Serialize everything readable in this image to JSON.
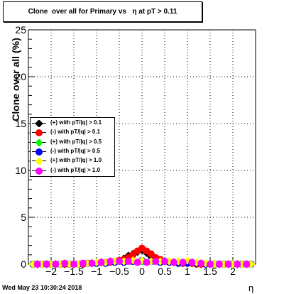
{
  "title_text": "Clone  over all for Primary vs   η at pT > 0.11",
  "footer": {
    "date": "Wed May 23 10:30:24 2018"
  },
  "chart_data": {
    "type": "scatter",
    "title": "Clone  over all for Primary vs   η at pT > 0.11",
    "xlabel": "η",
    "ylabel": "Clone  over all (%)",
    "xlim": [
      -2.5,
      2.5
    ],
    "ylim": [
      0,
      25
    ],
    "xticks": [
      "−2",
      "−1.5",
      "−1",
      "−0.5",
      "0",
      "0.5",
      "1",
      "1.5",
      "2"
    ],
    "xtick_values": [
      -2,
      -1.5,
      -1,
      -0.5,
      0,
      0.5,
      1,
      1.5,
      2
    ],
    "yticks": [
      "0",
      "5",
      "10",
      "15",
      "20",
      "25"
    ],
    "ytick_values": [
      0,
      5,
      10,
      15,
      20,
      25
    ],
    "grid": true,
    "legend_position": "left",
    "colors": {
      "black": "#000000",
      "red": "#ff0000",
      "green": "#00ff00",
      "blue": "#0000ff",
      "yellow": "#ffff00",
      "magenta": "#ff00ff"
    },
    "series": [
      {
        "name": "(+) with pT/|q| > 0.1",
        "color": "#000000",
        "x": [
          -2.4,
          -2.3,
          -2.2,
          -2.1,
          -2.0,
          -1.9,
          -1.8,
          -1.7,
          -1.6,
          -1.5,
          -1.4,
          -1.3,
          -1.2,
          -1.1,
          -1.0,
          -0.9,
          -0.8,
          -0.7,
          -0.6,
          -0.5,
          -0.4,
          -0.3,
          -0.2,
          -0.1,
          0.0,
          0.1,
          0.2,
          0.3,
          0.4,
          0.5,
          0.6,
          0.7,
          0.8,
          0.9,
          1.0,
          1.1,
          1.2,
          1.3,
          1.4,
          1.5,
          1.6,
          1.7,
          1.8,
          1.9,
          2.0,
          2.1,
          2.2,
          2.3,
          2.4
        ],
        "y": [
          0,
          0,
          0,
          0,
          0,
          0,
          0,
          0,
          0,
          0,
          0,
          0,
          0.1,
          0.1,
          0.1,
          0.2,
          0.2,
          0.3,
          0.3,
          0.4,
          0.6,
          0.9,
          1.1,
          1.3,
          1.5,
          1.2,
          0.8,
          0.5,
          0.4,
          0.3,
          0.2,
          0.2,
          0.1,
          0.1,
          0.1,
          0.1,
          0,
          0,
          0,
          0,
          0,
          0,
          0,
          0,
          0,
          0,
          0,
          0,
          0
        ]
      },
      {
        "name": "(-) with pT/|q| > 0.1",
        "color": "#ff0000",
        "x": [
          -2.4,
          -2.3,
          -2.2,
          -2.1,
          -2.0,
          -1.9,
          -1.8,
          -1.7,
          -1.6,
          -1.5,
          -1.4,
          -1.3,
          -1.2,
          -1.1,
          -1.0,
          -0.9,
          -0.8,
          -0.7,
          -0.6,
          -0.5,
          -0.4,
          -0.3,
          -0.2,
          -0.1,
          0.0,
          0.1,
          0.2,
          0.3,
          0.4,
          0.5,
          0.6,
          0.7,
          0.8,
          0.9,
          1.0,
          1.1,
          1.2,
          1.3,
          1.4,
          1.5,
          1.6,
          1.7,
          1.8,
          1.9,
          2.0,
          2.1,
          2.2,
          2.3,
          2.4
        ],
        "y": [
          0,
          0,
          0,
          0,
          0,
          0,
          0,
          0,
          0,
          0,
          0,
          0,
          0.1,
          0.1,
          0.1,
          0.2,
          0.2,
          0.2,
          0.3,
          0.4,
          0.5,
          0.7,
          1.0,
          1.4,
          1.7,
          1.4,
          1.1,
          0.7,
          0.5,
          0.3,
          0.2,
          0.2,
          0.1,
          0.1,
          0.1,
          0.1,
          0,
          0,
          0,
          0,
          0,
          0,
          0,
          0,
          0,
          0,
          0,
          0,
          0
        ]
      },
      {
        "name": "(+) with pT/|q| > 0.5",
        "color": "#00ff00",
        "x": [
          -2.4,
          -2.2,
          -2.0,
          -1.8,
          -1.6,
          -1.4,
          -1.2,
          -1.0,
          -0.8,
          -0.6,
          -0.4,
          -0.2,
          0.0,
          0.2,
          0.4,
          0.6,
          0.8,
          1.0,
          1.2,
          1.4,
          1.6,
          1.8,
          2.0,
          2.2,
          2.4
        ],
        "y": [
          0,
          0,
          0,
          0,
          0,
          0,
          0.1,
          0.1,
          0.1,
          0.2,
          0.2,
          0.3,
          0.3,
          0.3,
          0.2,
          0.2,
          0.1,
          0.1,
          0.1,
          0,
          0,
          0,
          0,
          0,
          0
        ]
      },
      {
        "name": "(-) with pT/|q| > 0.5",
        "color": "#0000ff",
        "x": [
          -2.4,
          -2.2,
          -2.0,
          -1.8,
          -1.6,
          -1.4,
          -1.2,
          -1.0,
          -0.8,
          -0.6,
          -0.4,
          -0.2,
          0.0,
          0.2,
          0.4,
          0.6,
          0.8,
          1.0,
          1.2,
          1.4,
          1.6,
          1.8,
          2.0,
          2.2,
          2.4
        ],
        "y": [
          0,
          0,
          0,
          0,
          0,
          0,
          0.1,
          0.1,
          0.1,
          0.2,
          0.2,
          0.3,
          0.4,
          0.3,
          0.2,
          0.2,
          0.1,
          0.1,
          0.1,
          0,
          0,
          0,
          0,
          0,
          0
        ]
      },
      {
        "name": "(+) with pT/|q| > 1.0",
        "color": "#ffff00",
        "x": [
          -2.4,
          -2.2,
          -2.0,
          -1.8,
          -1.6,
          -1.4,
          -1.2,
          -1.0,
          -0.8,
          -0.6,
          -0.4,
          -0.2,
          0.0,
          0.2,
          0.4,
          0.6,
          0.8,
          1.0,
          1.2,
          1.4,
          1.6,
          1.8,
          2.0,
          2.2,
          2.4
        ],
        "y": [
          0,
          0,
          0,
          0,
          0,
          0,
          0.1,
          0.2,
          0.2,
          0.3,
          0.3,
          0.4,
          0.4,
          0.3,
          0.3,
          0.3,
          0.3,
          0.4,
          0.2,
          0.1,
          0,
          0,
          0,
          0,
          0
        ]
      },
      {
        "name": "(-) with pT/|q| > 1.0",
        "color": "#ff00ff",
        "x": [
          -2.3,
          -2.1,
          -1.9,
          -1.7,
          -1.5,
          -1.3,
          -1.1,
          -0.9,
          -0.7,
          -0.5,
          -0.3,
          -0.1,
          0.1,
          0.3,
          0.5,
          0.7,
          0.9,
          1.1,
          1.3,
          1.5,
          1.7,
          1.9,
          2.1,
          2.3
        ],
        "y": [
          0,
          0,
          0,
          0.1,
          0,
          0.1,
          0.1,
          0.2,
          0.3,
          0.3,
          0.3,
          0.2,
          0.2,
          0.3,
          0.3,
          0.2,
          0.2,
          0.2,
          0.1,
          0,
          0,
          0,
          0,
          0
        ]
      }
    ]
  }
}
